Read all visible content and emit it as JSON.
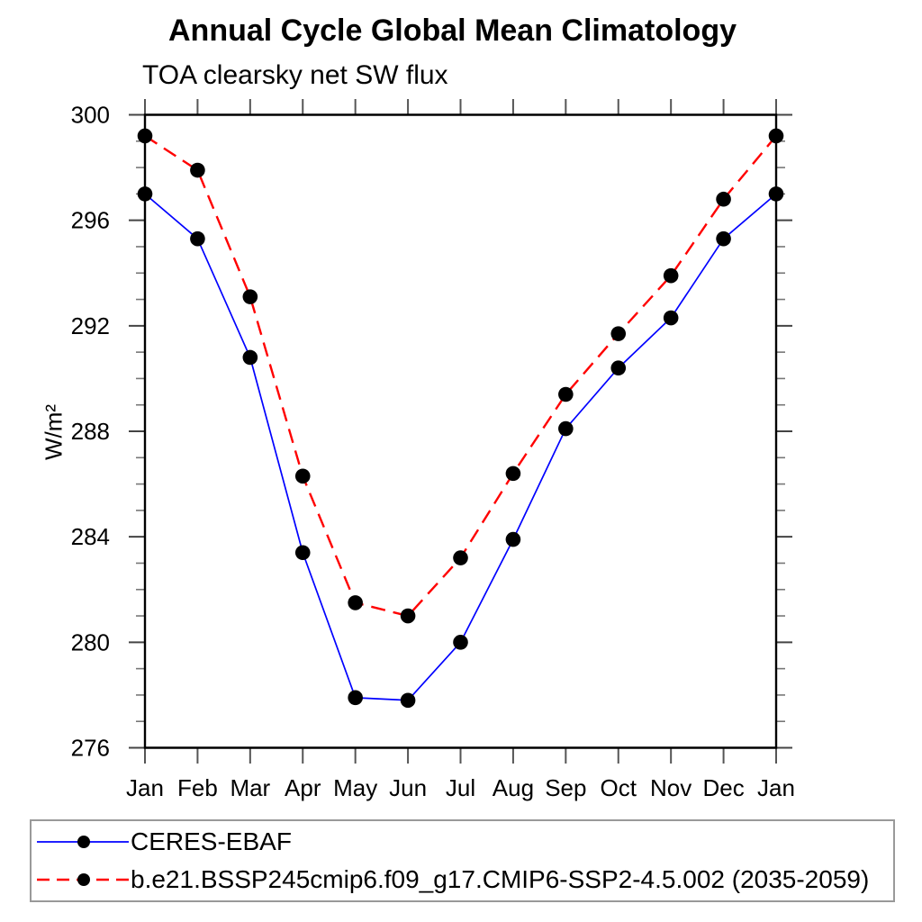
{
  "chart_data": {
    "type": "line",
    "title": "Annual Cycle Global Mean Climatology",
    "subtitle": "TOA clearsky net SW flux",
    "ylabel": "W/m²",
    "xlabel": "",
    "ylim": [
      276,
      300
    ],
    "yticks": [
      276,
      280,
      284,
      288,
      292,
      296,
      300
    ],
    "y_minor_interval": 1,
    "categories": [
      "Jan",
      "Feb",
      "Mar",
      "Apr",
      "May",
      "Jun",
      "Jul",
      "Aug",
      "Sep",
      "Oct",
      "Nov",
      "Dec",
      "Jan"
    ],
    "grid": false,
    "legend_position": "bottom",
    "series": [
      {
        "name": "CERES-EBAF",
        "line_color": "#0000ff",
        "line_style": "solid",
        "marker": "filled-circle",
        "marker_color": "#000000",
        "values": [
          297.0,
          295.3,
          290.8,
          283.4,
          277.9,
          277.8,
          280.0,
          283.9,
          288.1,
          290.4,
          292.3,
          295.3,
          297.0
        ]
      },
      {
        "name": "b.e21.BSSP245cmip6.f09_g17.CMIP6-SSP2-4.5.002 (2035-2059)",
        "line_color": "#ff0000",
        "line_style": "dashed",
        "marker": "filled-circle",
        "marker_color": "#000000",
        "values": [
          299.2,
          297.9,
          293.1,
          286.3,
          281.5,
          281.0,
          283.2,
          286.4,
          289.4,
          291.7,
          293.9,
          296.8,
          299.2
        ]
      }
    ]
  },
  "colors": {
    "axis": "#000000",
    "major_tick": "#444444",
    "minor_tick": "#777777",
    "month_tick": "#555555",
    "legend_border": "#999999",
    "text": "#000000",
    "background": "#ffffff"
  }
}
